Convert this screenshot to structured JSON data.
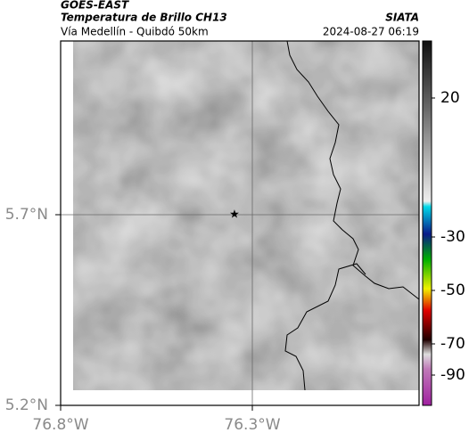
{
  "header": {
    "satellite": "GOES-EAST",
    "product": "Temperatura de Brillo CH13",
    "region": "Vía Medellín - Quibdó 50km",
    "source": "SIATA",
    "datetime": "2024-08-27 06:19"
  },
  "axes": {
    "lat_labels": [
      "5.7°N",
      "5.2°N"
    ],
    "lon_labels": [
      "76.8°W",
      "76.3°W"
    ]
  },
  "colorbar": {
    "labels": [
      "20",
      "-30",
      "-50",
      "-70",
      "-90"
    ]
  }
}
